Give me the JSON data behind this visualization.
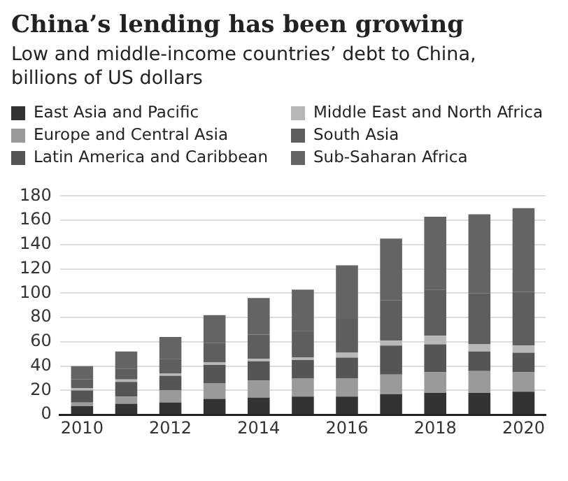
{
  "chart_data": {
    "type": "bar",
    "stacked": true,
    "title": "China’s lending has been growing",
    "subtitle": "Low and middle-income countries’ debt to China, billions of US dollars",
    "categories": [
      "2010",
      null,
      "2012",
      null,
      "2014",
      null,
      "2016",
      null,
      "2018",
      null,
      "2020"
    ],
    "series": [
      {
        "name": "East Asia and Pacific",
        "color": "#333333",
        "values": [
          7,
          9,
          10,
          13,
          14,
          15,
          15,
          17,
          18,
          18,
          19
        ]
      },
      {
        "name": "Europe and Central Asia",
        "color": "#9a9a9a",
        "values": [
          3,
          6,
          10,
          13,
          14,
          15,
          15,
          16,
          17,
          18,
          16
        ]
      },
      {
        "name": "Latin America and Caribbean",
        "color": "#555555",
        "values": [
          10,
          12,
          12,
          15,
          16,
          15,
          17,
          24,
          23,
          16,
          16
        ]
      },
      {
        "name": "Middle East and North Africa",
        "color": "#b8b8b8",
        "values": [
          2,
          2,
          2,
          2,
          2,
          2,
          4,
          4,
          7,
          6,
          6
        ]
      },
      {
        "name": "South Asia",
        "color": "#5e5e5e",
        "values": [
          7,
          9,
          12,
          16,
          20,
          22,
          28,
          33,
          38,
          42,
          44
        ]
      },
      {
        "name": "Sub-Saharan Africa",
        "color": "#646464",
        "values": [
          11,
          14,
          18,
          23,
          30,
          34,
          44,
          51,
          60,
          65,
          69
        ]
      }
    ],
    "ylim": [
      0,
      180
    ],
    "yticks": [
      0,
      20,
      40,
      60,
      80,
      100,
      120,
      140,
      160,
      180
    ],
    "grid": "y",
    "legend": "top"
  }
}
